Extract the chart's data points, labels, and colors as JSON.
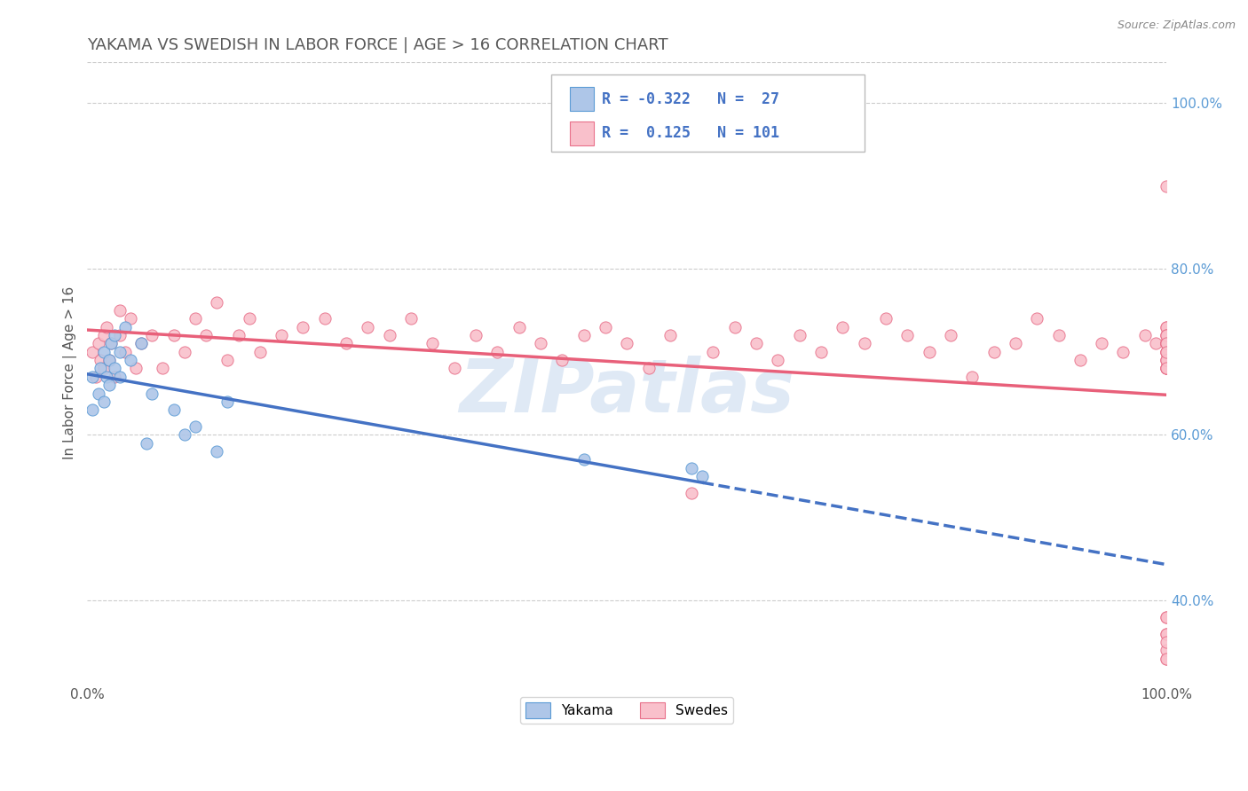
{
  "title": "YAKAMA VS SWEDISH IN LABOR FORCE | AGE > 16 CORRELATION CHART",
  "source": "Source: ZipAtlas.com",
  "xlabel": "",
  "ylabel": "In Labor Force | Age > 16",
  "xlim": [
    0.0,
    1.0
  ],
  "ylim": [
    0.3,
    1.05
  ],
  "x_tick_labels": [
    "0.0%",
    "100.0%"
  ],
  "y_tick_labels": [
    "40.0%",
    "60.0%",
    "80.0%",
    "100.0%"
  ],
  "y_tick_vals": [
    0.4,
    0.6,
    0.8,
    1.0
  ],
  "watermark": "ZIPatlas",
  "legend_R_yakama": "-0.322",
  "legend_N_yakama": "27",
  "legend_R_swedes": "0.125",
  "legend_N_swedes": "101",
  "yakama_color": "#aec6e8",
  "yakama_edge_color": "#5b9bd5",
  "swedes_color": "#f9c0cb",
  "swedes_edge_color": "#e8708a",
  "trend_yakama_color": "#4472c4",
  "trend_swedes_color": "#e8607a",
  "background_color": "#ffffff",
  "grid_color": "#cccccc",
  "title_color": "#595959",
  "axis_tick_color": "#5b9bd5",
  "yakama_scatter_x": [
    0.005,
    0.005,
    0.01,
    0.012,
    0.015,
    0.015,
    0.018,
    0.02,
    0.02,
    0.022,
    0.025,
    0.025,
    0.03,
    0.03,
    0.035,
    0.04,
    0.05,
    0.055,
    0.06,
    0.08,
    0.09,
    0.1,
    0.12,
    0.13,
    0.46,
    0.56,
    0.57
  ],
  "yakama_scatter_y": [
    0.67,
    0.63,
    0.65,
    0.68,
    0.7,
    0.64,
    0.67,
    0.69,
    0.66,
    0.71,
    0.68,
    0.72,
    0.7,
    0.67,
    0.73,
    0.69,
    0.71,
    0.59,
    0.65,
    0.63,
    0.6,
    0.61,
    0.58,
    0.64,
    0.57,
    0.56,
    0.55
  ],
  "swedes_scatter_x": [
    0.005,
    0.008,
    0.01,
    0.012,
    0.015,
    0.015,
    0.018,
    0.02,
    0.022,
    0.025,
    0.03,
    0.03,
    0.035,
    0.04,
    0.045,
    0.05,
    0.06,
    0.07,
    0.08,
    0.09,
    0.1,
    0.11,
    0.12,
    0.13,
    0.14,
    0.15,
    0.16,
    0.18,
    0.2,
    0.22,
    0.24,
    0.26,
    0.28,
    0.3,
    0.32,
    0.34,
    0.36,
    0.38,
    0.4,
    0.42,
    0.44,
    0.46,
    0.48,
    0.5,
    0.52,
    0.54,
    0.56,
    0.58,
    0.6,
    0.62,
    0.64,
    0.66,
    0.68,
    0.7,
    0.72,
    0.74,
    0.76,
    0.78,
    0.8,
    0.82,
    0.84,
    0.86,
    0.88,
    0.9,
    0.92,
    0.94,
    0.96,
    0.98,
    0.99,
    1.0,
    1.0,
    1.0,
    1.0,
    1.0,
    1.0,
    1.0,
    1.0,
    1.0,
    1.0,
    1.0,
    1.0,
    1.0,
    1.0,
    1.0,
    1.0,
    1.0,
    1.0,
    1.0,
    1.0,
    1.0,
    1.0,
    1.0,
    1.0,
    1.0,
    1.0,
    1.0,
    1.0,
    1.0,
    1.0,
    1.0,
    1.0
  ],
  "swedes_scatter_y": [
    0.7,
    0.67,
    0.71,
    0.69,
    0.72,
    0.68,
    0.73,
    0.69,
    0.71,
    0.67,
    0.72,
    0.75,
    0.7,
    0.74,
    0.68,
    0.71,
    0.72,
    0.68,
    0.72,
    0.7,
    0.74,
    0.72,
    0.76,
    0.69,
    0.72,
    0.74,
    0.7,
    0.72,
    0.73,
    0.74,
    0.71,
    0.73,
    0.72,
    0.74,
    0.71,
    0.68,
    0.72,
    0.7,
    0.73,
    0.71,
    0.69,
    0.72,
    0.73,
    0.71,
    0.68,
    0.72,
    0.53,
    0.7,
    0.73,
    0.71,
    0.69,
    0.72,
    0.7,
    0.73,
    0.71,
    0.74,
    0.72,
    0.7,
    0.72,
    0.67,
    0.7,
    0.71,
    0.74,
    0.72,
    0.69,
    0.71,
    0.7,
    0.72,
    0.71,
    0.68,
    0.71,
    0.7,
    0.73,
    0.71,
    0.68,
    0.7,
    0.72,
    0.69,
    0.71,
    0.68,
    0.73,
    0.71,
    0.7,
    0.68,
    0.72,
    0.69,
    0.71,
    0.69,
    0.72,
    0.71,
    0.7,
    0.68,
    0.33,
    0.36,
    0.38,
    0.34,
    0.36,
    0.33,
    0.35,
    0.38,
    0.9
  ]
}
